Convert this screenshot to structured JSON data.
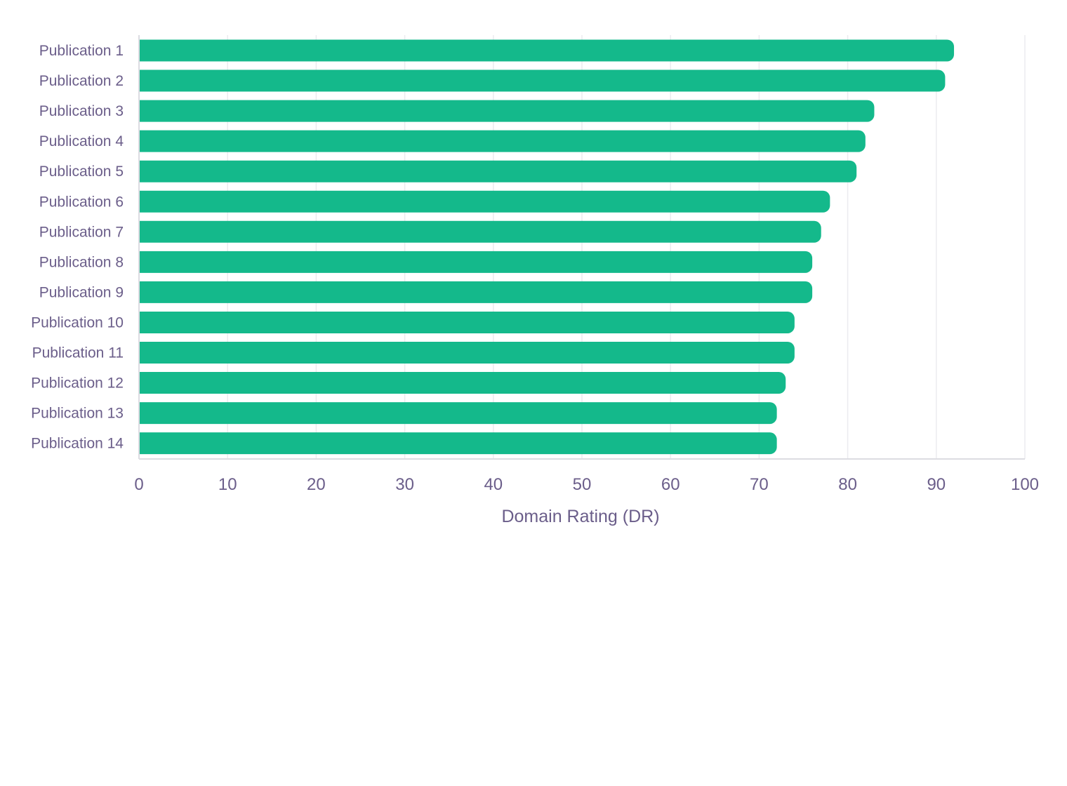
{
  "chart_data": {
    "type": "bar",
    "orientation": "horizontal",
    "title": "",
    "xlabel": "Domain Rating (DR)",
    "ylabel": "",
    "xlim": [
      0,
      100
    ],
    "x_ticks": [
      "0",
      "10",
      "20",
      "30",
      "40",
      "50",
      "60",
      "70",
      "80",
      "90",
      "100"
    ],
    "grid": true,
    "bar_color": "#14b98b",
    "categories": [
      "Publication 1",
      "Publication 2",
      "Publication 3",
      "Publication 4",
      "Publication 5",
      "Publication 6",
      "Publication 7",
      "Publication 8",
      "Publication 9",
      "Publication 10",
      "Publication 11",
      "Publication 12",
      "Publication 13",
      "Publication 14"
    ],
    "values": [
      92,
      91,
      83,
      82,
      81,
      78,
      77,
      76,
      76,
      74,
      74,
      73,
      72,
      72
    ]
  }
}
